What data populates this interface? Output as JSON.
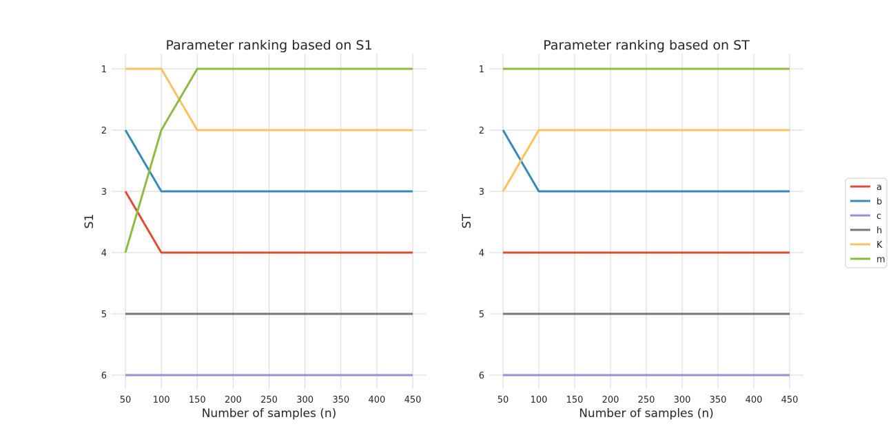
{
  "chart_data": [
    {
      "type": "line",
      "title": "Parameter ranking based on S1",
      "xlabel": "Number of samples (n)",
      "ylabel": "S1",
      "x": [
        50,
        100,
        150,
        200,
        250,
        300,
        350,
        400,
        450
      ],
      "xticks": [
        "50",
        "100",
        "150",
        "200",
        "250",
        "300",
        "350",
        "400",
        "450"
      ],
      "yticks": [
        "1",
        "2",
        "3",
        "4",
        "5",
        "6"
      ],
      "xlim": [
        50,
        450
      ],
      "ylim": [
        6,
        1
      ],
      "grid": true,
      "series": [
        {
          "name": "a",
          "values": [
            3,
            4,
            4,
            4,
            4,
            4,
            4,
            4,
            4
          ]
        },
        {
          "name": "b",
          "values": [
            2,
            3,
            3,
            3,
            3,
            3,
            3,
            3,
            3
          ]
        },
        {
          "name": "c",
          "values": [
            6,
            6,
            6,
            6,
            6,
            6,
            6,
            6,
            6
          ]
        },
        {
          "name": "h",
          "values": [
            5,
            5,
            5,
            5,
            5,
            5,
            5,
            5,
            5
          ]
        },
        {
          "name": "K",
          "values": [
            1,
            1,
            2,
            2,
            2,
            2,
            2,
            2,
            2
          ]
        },
        {
          "name": "m",
          "values": [
            4,
            2,
            1,
            1,
            1,
            1,
            1,
            1,
            1
          ]
        }
      ]
    },
    {
      "type": "line",
      "title": "Parameter ranking based on ST",
      "xlabel": "Number of samples (n)",
      "ylabel": "ST",
      "x": [
        50,
        100,
        150,
        200,
        250,
        300,
        350,
        400,
        450
      ],
      "xticks": [
        "50",
        "100",
        "150",
        "200",
        "250",
        "300",
        "350",
        "400",
        "450"
      ],
      "yticks": [
        "1",
        "2",
        "3",
        "4",
        "5",
        "6"
      ],
      "xlim": [
        50,
        450
      ],
      "ylim": [
        6,
        1
      ],
      "grid": true,
      "series": [
        {
          "name": "a",
          "values": [
            4,
            4,
            4,
            4,
            4,
            4,
            4,
            4,
            4
          ]
        },
        {
          "name": "b",
          "values": [
            2,
            3,
            3,
            3,
            3,
            3,
            3,
            3,
            3
          ]
        },
        {
          "name": "c",
          "values": [
            6,
            6,
            6,
            6,
            6,
            6,
            6,
            6,
            6
          ]
        },
        {
          "name": "h",
          "values": [
            5,
            5,
            5,
            5,
            5,
            5,
            5,
            5,
            5
          ]
        },
        {
          "name": "K",
          "values": [
            3,
            2,
            2,
            2,
            2,
            2,
            2,
            2,
            2
          ]
        },
        {
          "name": "m",
          "values": [
            1,
            1,
            1,
            1,
            1,
            1,
            1,
            1,
            1
          ]
        }
      ]
    }
  ],
  "legend": {
    "placement": "right",
    "entries": [
      "a",
      "b",
      "c",
      "h",
      "K",
      "m"
    ]
  },
  "colors": {
    "a": "#e24a33",
    "b": "#348abd",
    "c": "#988ed5",
    "h": "#777777",
    "K": "#fbc15e",
    "m": "#8eba42"
  }
}
